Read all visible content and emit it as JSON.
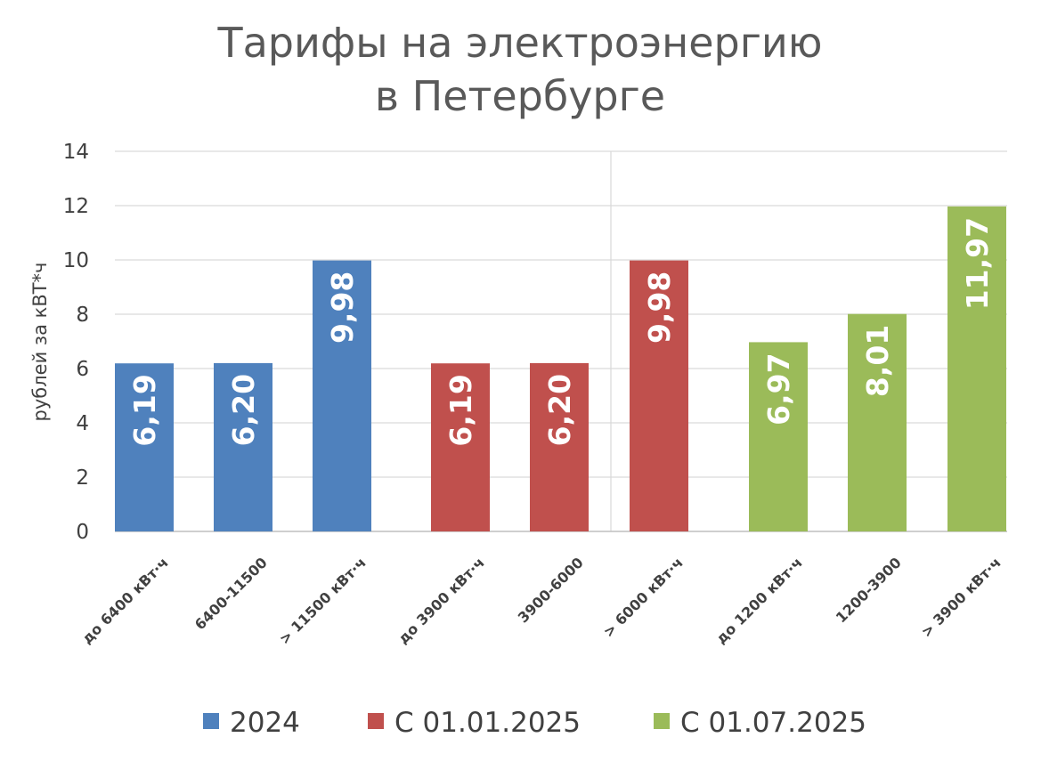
{
  "chart_data": {
    "type": "bar",
    "title_lines": [
      "Тарифы на электроэнергию",
      "в Петербурге"
    ],
    "ylabel": "рублей за кВТ*ч",
    "xlabel": "",
    "ylim": [
      0,
      14
    ],
    "yticks": [
      0,
      2,
      4,
      6,
      8,
      10,
      12,
      14
    ],
    "grid": true,
    "legend_position": "bottom",
    "categories": [
      "до 6400 кВт·ч",
      "6400-11500",
      "> 11500 кВт·ч",
      "до 3900 кВт·ч",
      "3900-6000",
      "> 6000 кВт·ч",
      "до 1200 кВт·ч",
      "1200-3900",
      "> 3900 кВт·ч"
    ],
    "series": [
      {
        "name": "2024",
        "color": "#4f81bd",
        "values": [
          6.19,
          6.2,
          9.98,
          null,
          null,
          null,
          null,
          null,
          null
        ]
      },
      {
        "name": "С 01.01.2025",
        "color": "#c0504d",
        "values": [
          null,
          null,
          null,
          6.19,
          6.2,
          9.98,
          null,
          null,
          null
        ]
      },
      {
        "name": "С 01.07.2025",
        "color": "#9bbb59",
        "values": [
          null,
          null,
          null,
          null,
          null,
          null,
          6.97,
          8.01,
          11.97
        ]
      }
    ],
    "data_labels": [
      "6,19",
      "6,20",
      "9,98",
      "6,19",
      "6,20",
      "9,98",
      "6,97",
      "8,01",
      "11,97"
    ]
  }
}
